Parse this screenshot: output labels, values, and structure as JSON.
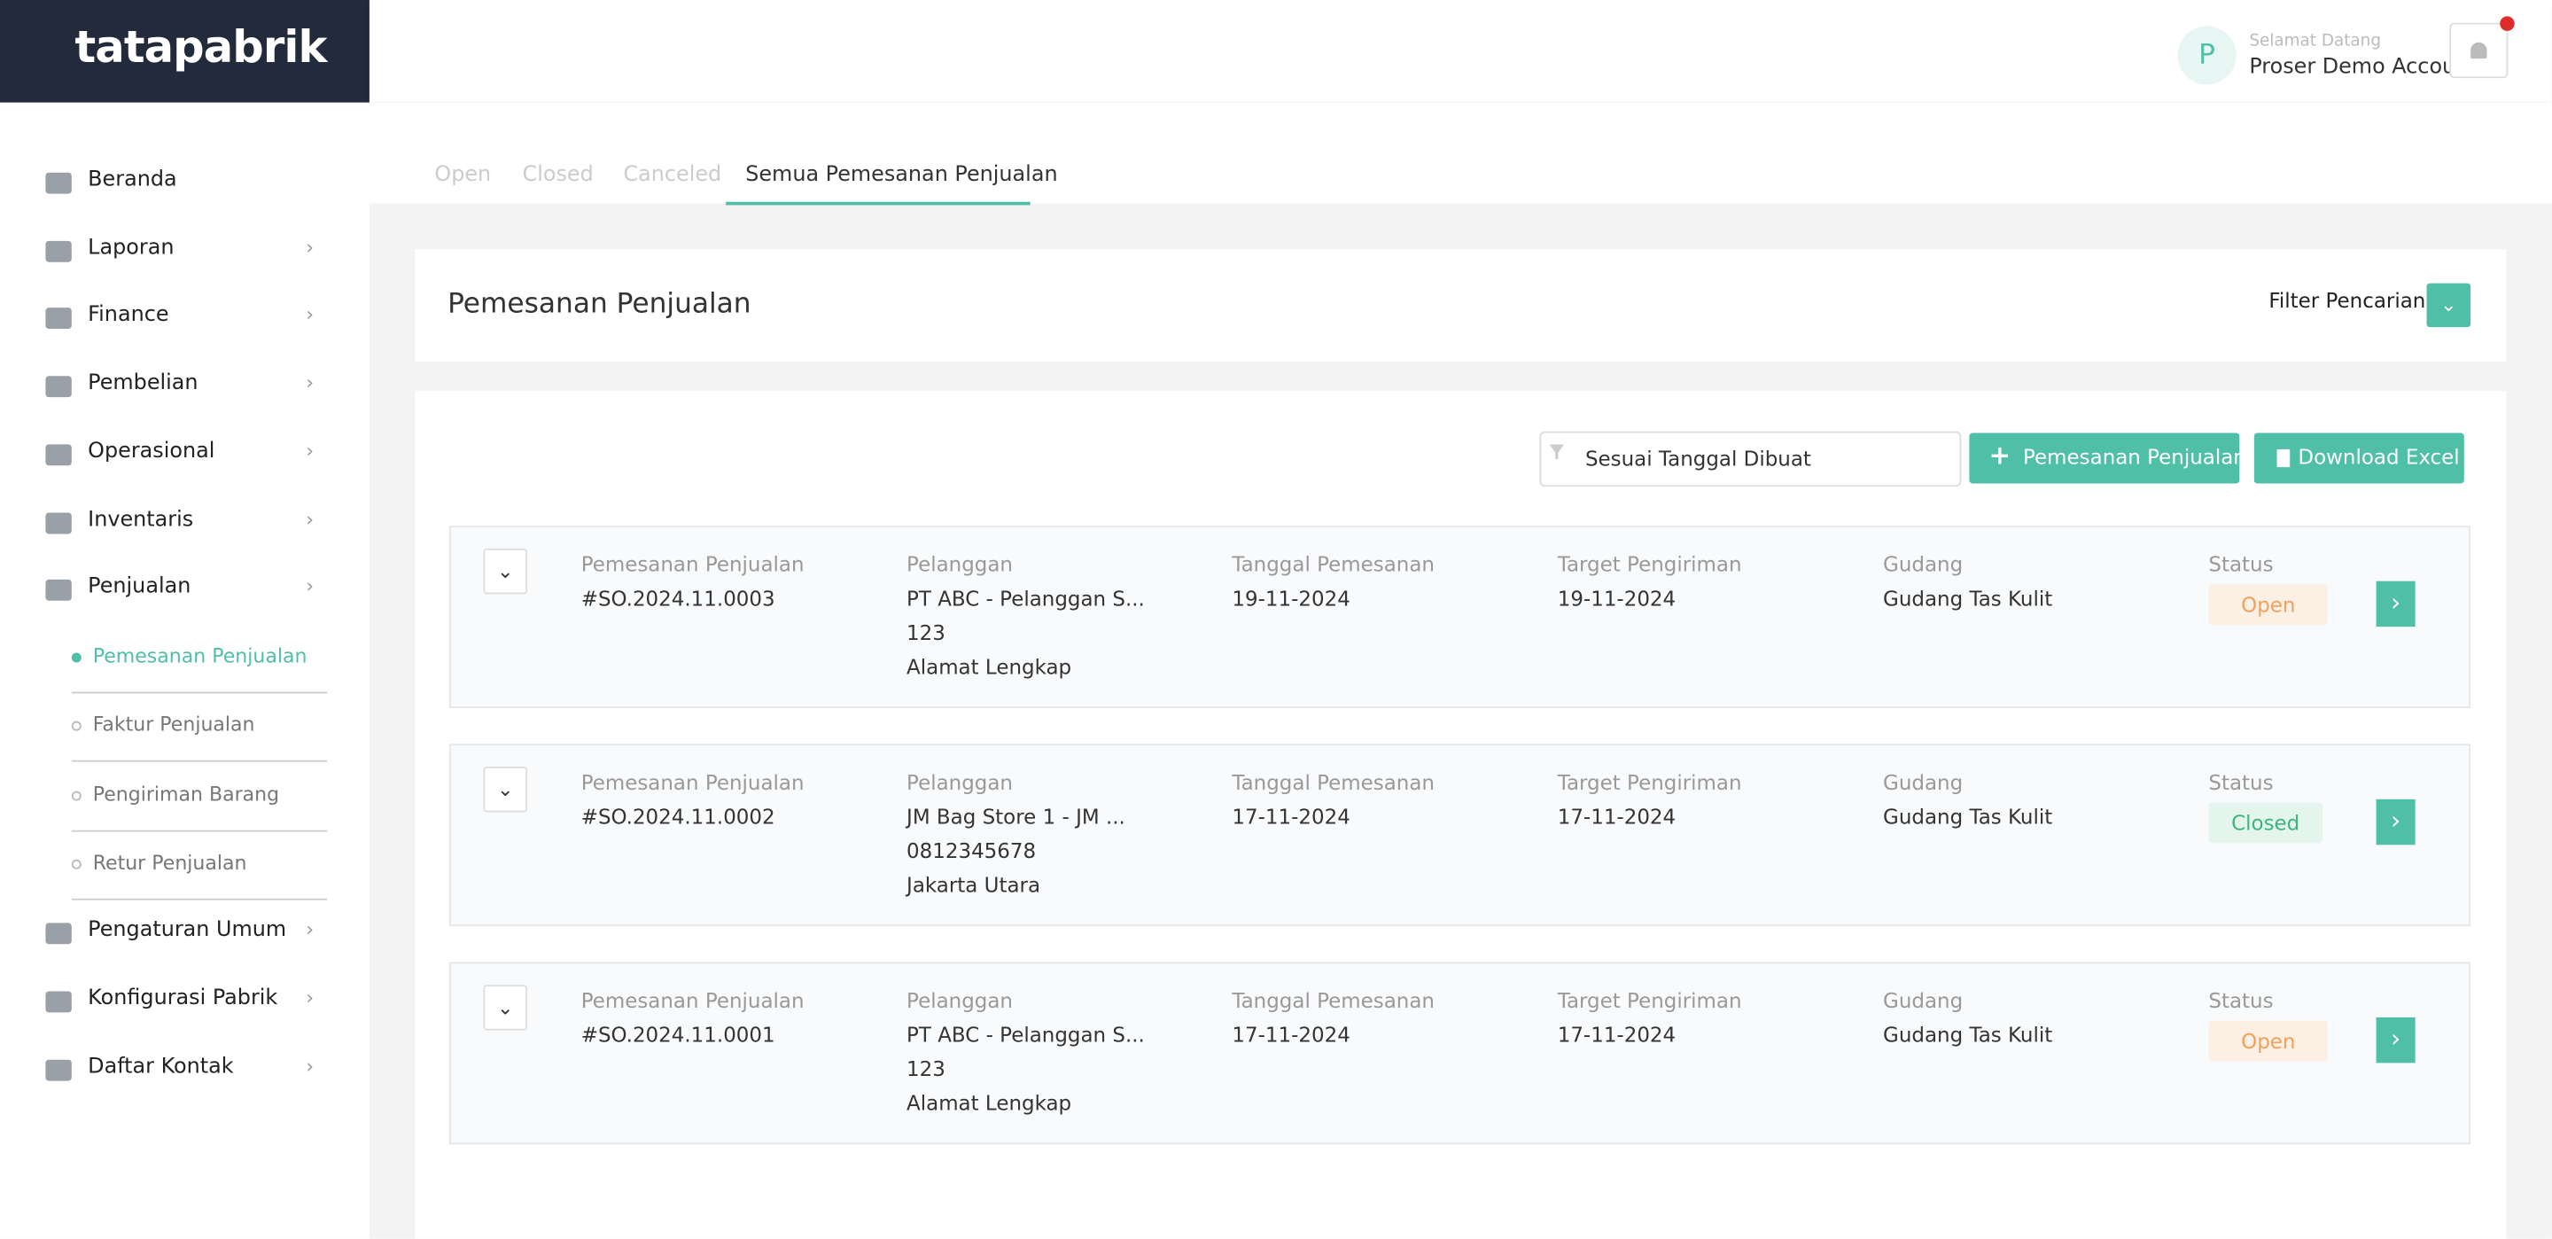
{
  "brand": "tatapabrik",
  "header": {
    "avatar": "P",
    "welcome": "Selamat Datang",
    "account": "Proser Demo Account"
  },
  "sidebar": {
    "items": [
      "Beranda",
      "Laporan",
      "Finance",
      "Pembelian",
      "Operasional",
      "Inventaris",
      "Penjualan"
    ],
    "submenu": [
      "Pemesanan Penjualan",
      "Faktur Penjualan",
      "Pengiriman Barang",
      "Retur Penjualan"
    ],
    "items_after": [
      "Pengaturan Umum",
      "Konfigurasi Pabrik",
      "Daftar Kontak"
    ]
  },
  "tabs": [
    "Open",
    "Closed",
    "Canceled",
    "Semua Pemesanan Penjualan"
  ],
  "panel": {
    "title": "Pemesanan Penjualan",
    "filter": "Filter Pencarian",
    "select": "Sesuai Tanggal Dibuat",
    "add_button": "Pemesanan Penjualan",
    "excel_button": "Download Excel"
  },
  "columns": [
    "Pemesanan Penjualan",
    "Pelanggan",
    "Tanggal Pemesanan",
    "Target Pengiriman",
    "Gudang",
    "Status"
  ],
  "orders": [
    {
      "number": "#SO.2024.11.0003",
      "customer": [
        "PT ABC - Pelanggan S...",
        "123",
        "Alamat Lengkap"
      ],
      "order_date": "19-11-2024",
      "target_date": "19-11-2024",
      "warehouse": "Gudang Tas Kulit",
      "status": "Open"
    },
    {
      "number": "#SO.2024.11.0002",
      "customer": [
        "JM Bag Store 1 - JM ...",
        "0812345678",
        "Jakarta Utara"
      ],
      "order_date": "17-11-2024",
      "target_date": "17-11-2024",
      "warehouse": "Gudang Tas Kulit",
      "status": "Closed"
    },
    {
      "number": "#SO.2024.11.0001",
      "customer": [
        "PT ABC - Pelanggan S...",
        "123",
        "Alamat Lengkap"
      ],
      "order_date": "17-11-2024",
      "target_date": "17-11-2024",
      "warehouse": "Gudang Tas Kulit",
      "status": "Open"
    }
  ]
}
